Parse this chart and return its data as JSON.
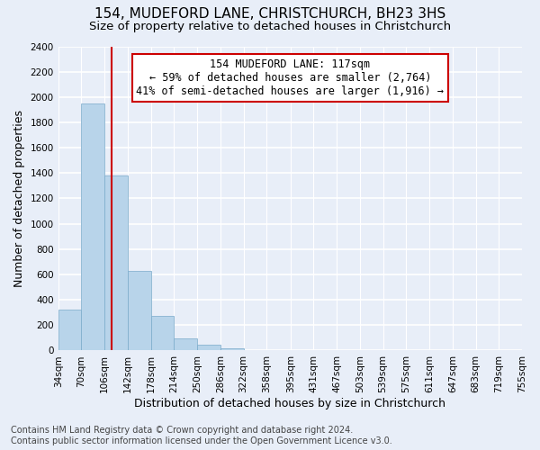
{
  "title": "154, MUDEFORD LANE, CHRISTCHURCH, BH23 3HS",
  "subtitle": "Size of property relative to detached houses in Christchurch",
  "xlabel": "Distribution of detached houses by size in Christchurch",
  "ylabel": "Number of detached properties",
  "footnote1": "Contains HM Land Registry data © Crown copyright and database right 2024.",
  "footnote2": "Contains public sector information licensed under the Open Government Licence v3.0.",
  "bin_edges": [
    34,
    70,
    106,
    142,
    178,
    214,
    250,
    286,
    322,
    358,
    395,
    431,
    467,
    503,
    539,
    575,
    611,
    647,
    683,
    719,
    755
  ],
  "bin_heights": [
    320,
    1950,
    1380,
    630,
    275,
    95,
    45,
    20,
    0,
    0,
    0,
    0,
    0,
    0,
    0,
    0,
    0,
    0,
    0,
    0
  ],
  "bar_color": "#b8d4ea",
  "bar_edge_color": "#7aaaca",
  "vline_x": 117,
  "vline_color": "#cc0000",
  "annotation_line1": "154 MUDEFORD LANE: 117sqm",
  "annotation_line2": "← 59% of detached houses are smaller (2,764)",
  "annotation_line3": "41% of semi-detached houses are larger (1,916) →",
  "ylim": [
    0,
    2400
  ],
  "yticks": [
    0,
    200,
    400,
    600,
    800,
    1000,
    1200,
    1400,
    1600,
    1800,
    2000,
    2200,
    2400
  ],
  "tick_labels": [
    "34sqm",
    "70sqm",
    "106sqm",
    "142sqm",
    "178sqm",
    "214sqm",
    "250sqm",
    "286sqm",
    "322sqm",
    "358sqm",
    "395sqm",
    "431sqm",
    "467sqm",
    "503sqm",
    "539sqm",
    "575sqm",
    "611sqm",
    "647sqm",
    "683sqm",
    "719sqm",
    "755sqm"
  ],
  "fig_background_color": "#e8eef8",
  "plot_bg_color": "#e8eef8",
  "grid_color": "#ffffff",
  "title_fontsize": 11,
  "subtitle_fontsize": 9.5,
  "axis_label_fontsize": 9,
  "tick_fontsize": 7.5,
  "annotation_fontsize": 8.5,
  "footnote_fontsize": 7
}
